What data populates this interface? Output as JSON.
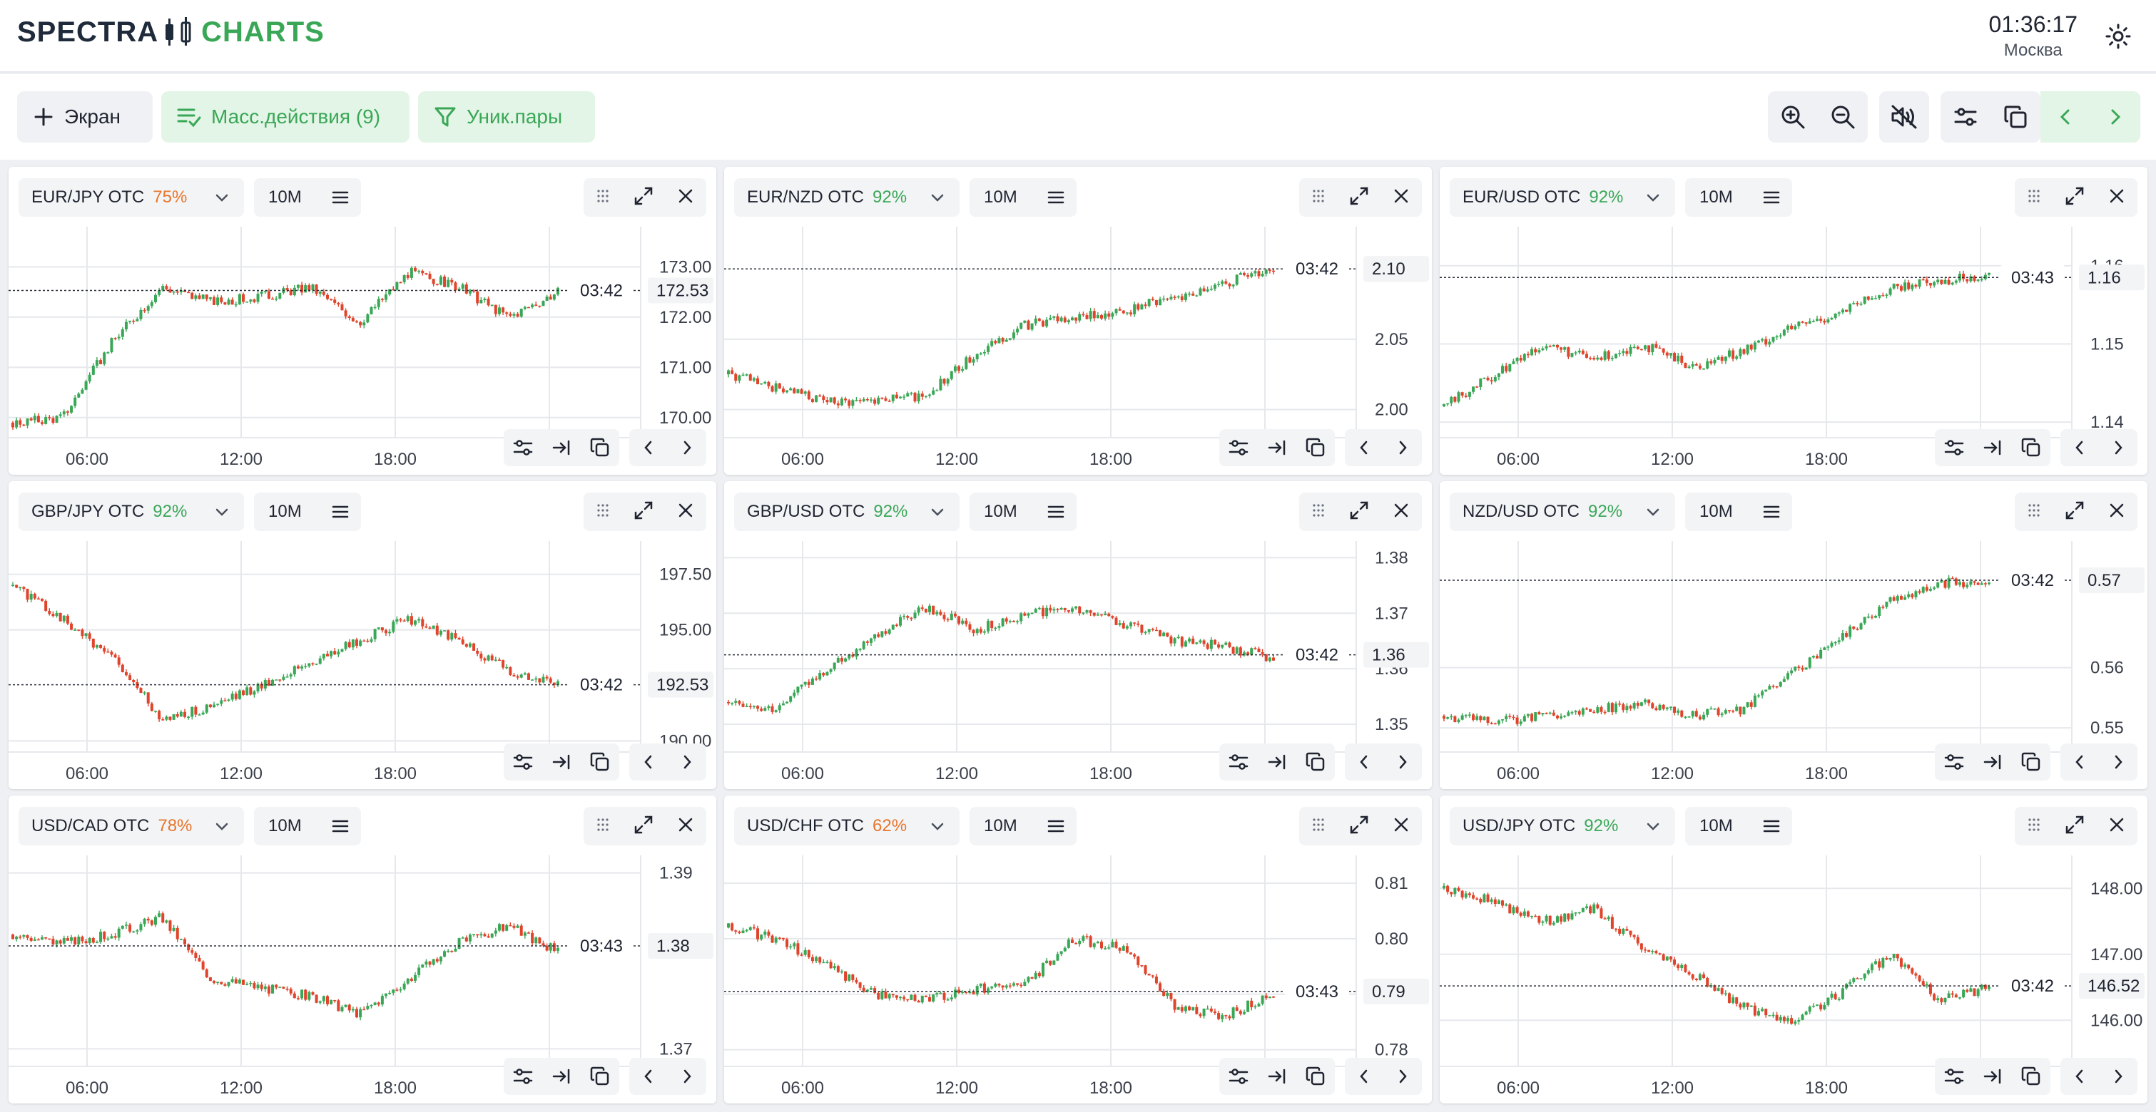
{
  "app": {
    "brand_left": "SPECTRA",
    "brand_right": "CHARTS",
    "time": "01:36:17",
    "city": "Москва"
  },
  "toolbar": {
    "screen_label": "Экран",
    "mass_actions_label": "Масс.действия (9)",
    "unique_pairs_label": "Уник.пары"
  },
  "colors": {
    "up": "#3aa757",
    "down": "#e0442c",
    "orange": "#e8762c",
    "green": "#3aa757"
  },
  "panels": [
    {
      "pair": "EUR/JPY OTC",
      "pct": "75%",
      "pct_color": "orange",
      "tf": "10M",
      "time_tag": "03:42",
      "price_tag": "172.53",
      "y_ticks": [
        "173.00",
        "172.00",
        "171.00",
        "170.00"
      ],
      "ymin": 169.6,
      "ymax": 173.8,
      "price": 172.53,
      "x_ticks": [
        "06:00",
        "12:00",
        "18:00"
      ],
      "trend": [
        169.9,
        170.0,
        171.5,
        172.6,
        172.3,
        172.4,
        172.6,
        171.9,
        172.9,
        172.6,
        172.0,
        172.5
      ]
    },
    {
      "pair": "EUR/NZD OTC",
      "pct": "92%",
      "pct_color": "green",
      "tf": "10M",
      "time_tag": "03:42",
      "price_tag": "2.10",
      "y_ticks": [
        "2.05",
        "2.00"
      ],
      "ymin": 1.98,
      "ymax": 2.13,
      "price": 2.1,
      "x_ticks": [
        "06:00",
        "12:00",
        "18:00"
      ],
      "trend": [
        2.025,
        2.015,
        2.005,
        2.008,
        2.01,
        2.04,
        2.06,
        2.065,
        2.07,
        2.08,
        2.09,
        2.1
      ]
    },
    {
      "pair": "EUR/USD OTC",
      "pct": "92%",
      "pct_color": "green",
      "tf": "10M",
      "time_tag": "03:43",
      "price_tag": "1.16",
      "y_ticks": [
        "1.16",
        "1.15",
        "1.14"
      ],
      "ymin": 1.138,
      "ymax": 1.165,
      "price": 1.1585,
      "x_ticks": [
        "06:00",
        "12:00",
        "18:00"
      ],
      "trend": [
        1.142,
        1.146,
        1.15,
        1.148,
        1.15,
        1.147,
        1.149,
        1.152,
        1.154,
        1.157,
        1.158,
        1.159
      ]
    },
    {
      "pair": "GBP/JPY OTC",
      "pct": "92%",
      "pct_color": "green",
      "tf": "10M",
      "time_tag": "03:42",
      "price_tag": "192.53",
      "y_ticks": [
        "197.50",
        "195.00",
        "190.00"
      ],
      "ymin": 189.5,
      "ymax": 199.0,
      "price": 192.53,
      "x_ticks": [
        "06:00",
        "12:00",
        "18:00"
      ],
      "trend": [
        197.0,
        195.5,
        193.8,
        191.0,
        191.5,
        192.5,
        193.5,
        194.5,
        195.5,
        194.5,
        193.2,
        192.5
      ]
    },
    {
      "pair": "GBP/USD OTC",
      "pct": "92%",
      "pct_color": "green",
      "tf": "10M",
      "time_tag": "03:42",
      "price_tag": "1.36",
      "y_ticks": [
        "1.38",
        "1.37",
        "1.36",
        "1.35"
      ],
      "ymin": 1.345,
      "ymax": 1.383,
      "price": 1.3625,
      "x_ticks": [
        "06:00",
        "12:00",
        "18:00"
      ],
      "trend": [
        1.354,
        1.353,
        1.36,
        1.366,
        1.371,
        1.367,
        1.37,
        1.371,
        1.368,
        1.365,
        1.364,
        1.362
      ]
    },
    {
      "pair": "NZD/USD OTC",
      "pct": "92%",
      "pct_color": "green",
      "tf": "10M",
      "time_tag": "03:42",
      "price_tag": "0.57",
      "y_ticks": [
        "0.56",
        "0.55"
      ],
      "ymin": 0.546,
      "ymax": 0.581,
      "price": 0.5745,
      "x_ticks": [
        "06:00",
        "12:00",
        "18:00"
      ],
      "trend": [
        0.552,
        0.551,
        0.552,
        0.553,
        0.554,
        0.552,
        0.553,
        0.559,
        0.565,
        0.571,
        0.574,
        0.574
      ]
    },
    {
      "pair": "USD/CAD OTC",
      "pct": "78%",
      "pct_color": "orange",
      "tf": "10M",
      "time_tag": "03:43",
      "price_tag": "1.38",
      "y_ticks": [
        "1.39",
        "1.37"
      ],
      "ymin": 1.368,
      "ymax": 1.392,
      "price": 1.3817,
      "x_ticks": [
        "06:00",
        "12:00",
        "18:00"
      ],
      "trend": [
        1.383,
        1.382,
        1.383,
        1.385,
        1.378,
        1.377,
        1.376,
        1.374,
        1.378,
        1.382,
        1.384,
        1.381
      ]
    },
    {
      "pair": "USD/CHF OTC",
      "pct": "62%",
      "pct_color": "orange",
      "tf": "10M",
      "time_tag": "03:43",
      "price_tag": "0.79",
      "y_ticks": [
        "0.81",
        "0.80",
        "0.79",
        "0.78"
      ],
      "ymin": 0.777,
      "ymax": 0.815,
      "price": 0.7905,
      "x_ticks": [
        "06:00",
        "12:00",
        "18:00"
      ],
      "trend": [
        0.802,
        0.8,
        0.795,
        0.79,
        0.789,
        0.791,
        0.792,
        0.8,
        0.798,
        0.788,
        0.786,
        0.79
      ]
    },
    {
      "pair": "USD/JPY OTC",
      "pct": "92%",
      "pct_color": "green",
      "tf": "10M",
      "time_tag": "03:42",
      "price_tag": "146.52",
      "y_ticks": [
        "148.00",
        "147.00",
        "146.00"
      ],
      "ymin": 145.3,
      "ymax": 148.5,
      "price": 146.52,
      "x_ticks": [
        "06:00",
        "12:00",
        "18:00"
      ],
      "trend": [
        148.0,
        147.8,
        147.5,
        147.7,
        147.1,
        146.7,
        146.2,
        146.0,
        146.4,
        147.0,
        146.3,
        146.5
      ]
    }
  ]
}
